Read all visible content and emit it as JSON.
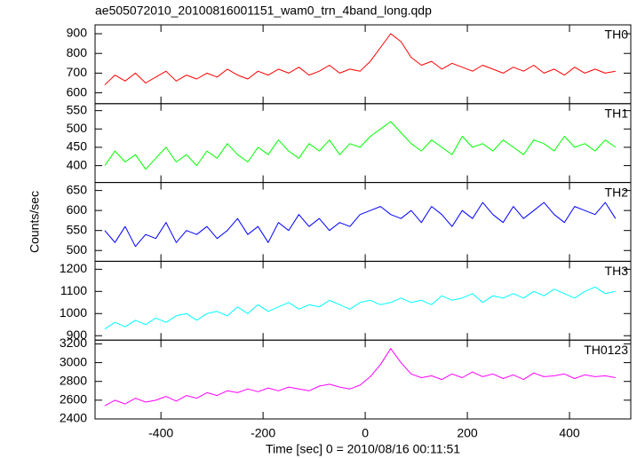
{
  "chart_data": [
    {
      "type": "line",
      "title": "ae505072010_20100816001151_wam0_trn_4band_long.qdp",
      "x": [
        -510,
        -490,
        -470,
        -450,
        -430,
        -410,
        -390,
        -370,
        -350,
        -330,
        -310,
        -290,
        -270,
        -250,
        -230,
        -210,
        -190,
        -170,
        -150,
        -130,
        -110,
        -90,
        -70,
        -50,
        -30,
        -10,
        10,
        30,
        50,
        70,
        90,
        110,
        130,
        150,
        170,
        190,
        210,
        230,
        250,
        270,
        290,
        310,
        330,
        350,
        370,
        390,
        410,
        430,
        450,
        470,
        490
      ],
      "series": [
        {
          "name": "TH0",
          "color": "#ff0000",
          "values": [
            640,
            690,
            660,
            700,
            650,
            680,
            710,
            660,
            690,
            670,
            700,
            680,
            720,
            690,
            670,
            710,
            690,
            720,
            700,
            730,
            690,
            710,
            740,
            700,
            720,
            710,
            760,
            830,
            900,
            860,
            780,
            740,
            760,
            720,
            750,
            730,
            710,
            740,
            720,
            700,
            730,
            710,
            740,
            700,
            720,
            690,
            730,
            700,
            720,
            700,
            710
          ]
        }
      ],
      "xlim": [
        -529,
        520
      ],
      "xticks": [
        -400,
        -200,
        0,
        200,
        400
      ],
      "ylim": [
        545,
        945
      ],
      "yticks": [
        600,
        700,
        800,
        900
      ]
    },
    {
      "type": "line",
      "x": [
        -510,
        -490,
        -470,
        -450,
        -430,
        -410,
        -390,
        -370,
        -350,
        -330,
        -310,
        -290,
        -270,
        -250,
        -230,
        -210,
        -190,
        -170,
        -150,
        -130,
        -110,
        -90,
        -70,
        -50,
        -30,
        -10,
        10,
        30,
        50,
        70,
        90,
        110,
        130,
        150,
        170,
        190,
        210,
        230,
        250,
        270,
        290,
        310,
        330,
        350,
        370,
        390,
        410,
        430,
        450,
        470,
        490
      ],
      "series": [
        {
          "name": "TH1",
          "color": "#00ff00",
          "values": [
            400,
            440,
            410,
            430,
            390,
            420,
            450,
            410,
            430,
            400,
            440,
            420,
            460,
            430,
            410,
            450,
            430,
            470,
            440,
            420,
            460,
            440,
            470,
            430,
            460,
            450,
            480,
            500,
            520,
            490,
            460,
            440,
            470,
            450,
            430,
            480,
            450,
            460,
            440,
            470,
            450,
            430,
            470,
            460,
            440,
            480,
            450,
            460,
            440,
            470,
            450
          ]
        }
      ],
      "xlim": [
        -529,
        520
      ],
      "xticks": [
        -400,
        -200,
        0,
        200,
        400
      ],
      "ylim": [
        354,
        569
      ],
      "yticks": [
        400,
        450,
        500,
        550
      ]
    },
    {
      "type": "line",
      "ylabel": "Counts/sec",
      "x": [
        -510,
        -490,
        -470,
        -450,
        -430,
        -410,
        -390,
        -370,
        -350,
        -330,
        -310,
        -290,
        -270,
        -250,
        -230,
        -210,
        -190,
        -170,
        -150,
        -130,
        -110,
        -90,
        -70,
        -50,
        -30,
        -10,
        10,
        30,
        50,
        70,
        90,
        110,
        130,
        150,
        170,
        190,
        210,
        230,
        250,
        270,
        290,
        310,
        330,
        350,
        370,
        390,
        410,
        430,
        450,
        470,
        490
      ],
      "series": [
        {
          "name": "TH2",
          "color": "#0000ff",
          "values": [
            550,
            520,
            560,
            510,
            540,
            530,
            570,
            520,
            550,
            540,
            560,
            530,
            550,
            580,
            540,
            560,
            520,
            570,
            550,
            590,
            560,
            580,
            550,
            570,
            560,
            590,
            600,
            610,
            590,
            580,
            600,
            570,
            610,
            590,
            560,
            600,
            580,
            620,
            590,
            570,
            610,
            580,
            600,
            620,
            590,
            570,
            610,
            600,
            590,
            620,
            580
          ]
        }
      ],
      "xlim": [
        -529,
        520
      ],
      "xticks": [
        -400,
        -200,
        0,
        200,
        400
      ],
      "ylim": [
        473,
        670
      ],
      "yticks": [
        500,
        550,
        600,
        650
      ]
    },
    {
      "type": "line",
      "x": [
        -510,
        -490,
        -470,
        -450,
        -430,
        -410,
        -390,
        -370,
        -350,
        -330,
        -310,
        -290,
        -270,
        -250,
        -230,
        -210,
        -190,
        -170,
        -150,
        -130,
        -110,
        -90,
        -70,
        -50,
        -30,
        -10,
        10,
        30,
        50,
        70,
        90,
        110,
        130,
        150,
        170,
        190,
        210,
        230,
        250,
        270,
        290,
        310,
        330,
        350,
        370,
        390,
        410,
        430,
        450,
        470,
        490
      ],
      "series": [
        {
          "name": "TH3",
          "color": "#00ffff",
          "values": [
            930,
            960,
            940,
            970,
            950,
            980,
            960,
            990,
            1000,
            970,
            1000,
            1010,
            990,
            1030,
            1000,
            1040,
            1010,
            1030,
            1050,
            1020,
            1040,
            1030,
            1060,
            1040,
            1020,
            1050,
            1060,
            1040,
            1050,
            1070,
            1050,
            1060,
            1040,
            1080,
            1060,
            1070,
            1090,
            1050,
            1080,
            1070,
            1090,
            1070,
            1100,
            1080,
            1110,
            1090,
            1070,
            1100,
            1120,
            1090,
            1100
          ]
        }
      ],
      "xlim": [
        -529,
        520
      ],
      "xticks": [
        -400,
        -200,
        0,
        200,
        400
      ],
      "ylim": [
        880,
        1236
      ],
      "yticks": [
        900,
        1000,
        1100,
        1200
      ]
    },
    {
      "type": "line",
      "xlabel": "Time [sec] 0 = 2010/08/16 00:11:51",
      "x": [
        -510,
        -490,
        -470,
        -450,
        -430,
        -410,
        -390,
        -370,
        -350,
        -330,
        -310,
        -290,
        -270,
        -250,
        -230,
        -210,
        -190,
        -170,
        -150,
        -130,
        -110,
        -90,
        -70,
        -50,
        -30,
        -10,
        10,
        30,
        50,
        70,
        90,
        110,
        130,
        150,
        170,
        190,
        210,
        230,
        250,
        270,
        290,
        310,
        330,
        350,
        370,
        390,
        410,
        430,
        450,
        470,
        490
      ],
      "series": [
        {
          "name": "TH0123",
          "color": "#ff00ff",
          "values": [
            2540,
            2600,
            2560,
            2620,
            2580,
            2600,
            2640,
            2590,
            2650,
            2620,
            2680,
            2650,
            2700,
            2680,
            2720,
            2690,
            2730,
            2700,
            2740,
            2720,
            2700,
            2750,
            2770,
            2740,
            2720,
            2760,
            2850,
            2980,
            3150,
            3000,
            2880,
            2840,
            2860,
            2820,
            2880,
            2840,
            2900,
            2850,
            2880,
            2830,
            2870,
            2820,
            2890,
            2850,
            2860,
            2880,
            2830,
            2870,
            2850,
            2860,
            2840
          ]
        }
      ],
      "xlim": [
        -529,
        520
      ],
      "xticks": [
        -400,
        -200,
        0,
        200,
        400
      ],
      "ylim": [
        2400,
        3240
      ],
      "yticks": [
        2400,
        2600,
        2800,
        3000,
        3200
      ]
    }
  ]
}
